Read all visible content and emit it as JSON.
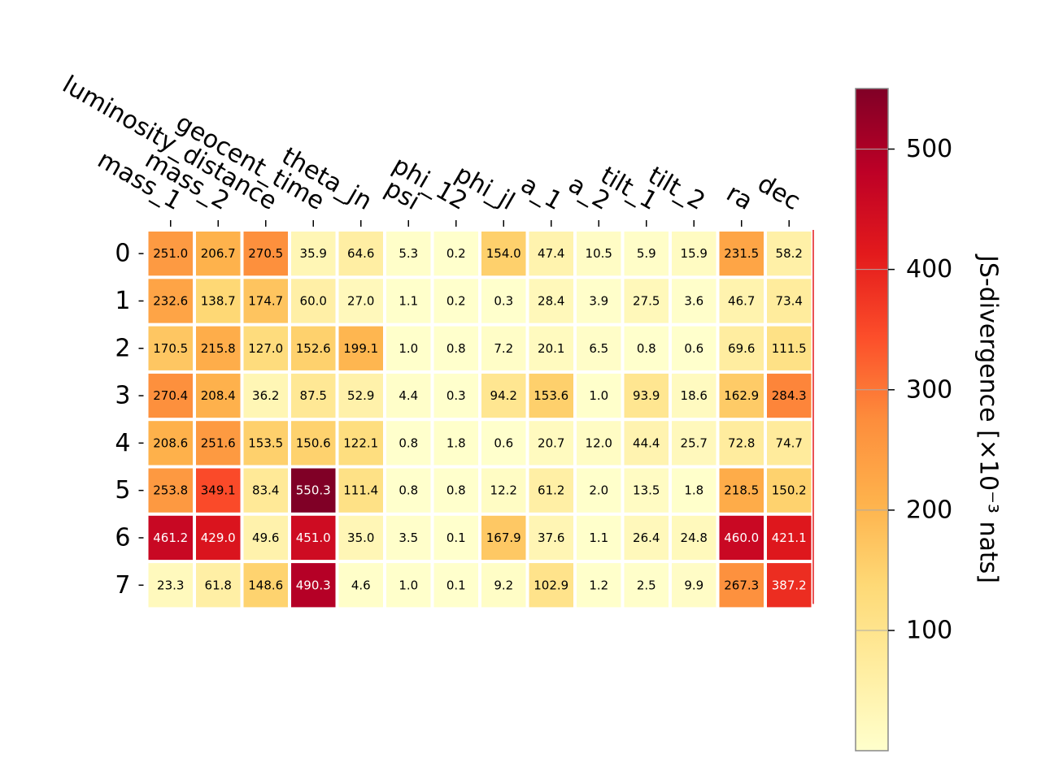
{
  "chart_data": {
    "type": "heatmap",
    "title": "",
    "xlabel": "",
    "ylabel": "",
    "x_categories": [
      "mass_1",
      "mass_2",
      "luminosity_distance",
      "geocent_time",
      "theta_jn",
      "psi",
      "phi_12",
      "phi_jl",
      "a_1",
      "a_2",
      "tilt_1",
      "tilt_2",
      "ra",
      "dec"
    ],
    "y_categories": [
      "0",
      "1",
      "2",
      "3",
      "4",
      "5",
      "6",
      "7"
    ],
    "values": [
      [
        251.0,
        206.7,
        270.5,
        35.9,
        64.6,
        5.3,
        0.2,
        154.0,
        47.4,
        10.5,
        5.9,
        15.9,
        231.5,
        58.2
      ],
      [
        232.6,
        138.7,
        174.7,
        60.0,
        27.0,
        1.1,
        0.2,
        0.3,
        28.4,
        3.9,
        27.5,
        3.6,
        46.7,
        73.4
      ],
      [
        170.5,
        215.8,
        127.0,
        152.6,
        199.1,
        1.0,
        0.8,
        7.2,
        20.1,
        6.5,
        0.8,
        0.6,
        69.6,
        111.5
      ],
      [
        270.4,
        208.4,
        36.2,
        87.5,
        52.9,
        4.4,
        0.3,
        94.2,
        153.6,
        1.0,
        93.9,
        18.6,
        162.9,
        284.3
      ],
      [
        208.6,
        251.6,
        153.5,
        150.6,
        122.1,
        0.8,
        1.8,
        0.6,
        20.7,
        12.0,
        44.4,
        25.7,
        72.8,
        74.7
      ],
      [
        253.8,
        349.1,
        83.4,
        550.3,
        111.4,
        0.8,
        0.8,
        12.2,
        61.2,
        2.0,
        13.5,
        1.8,
        218.5,
        150.2
      ],
      [
        461.2,
        429.0,
        49.6,
        451.0,
        35.0,
        3.5,
        0.1,
        167.9,
        37.6,
        1.1,
        26.4,
        24.8,
        460.0,
        421.1
      ],
      [
        23.3,
        61.8,
        148.6,
        490.3,
        4.6,
        1.0,
        0.1,
        9.2,
        102.9,
        1.2,
        2.5,
        9.9,
        267.3,
        387.2
      ]
    ],
    "colormap": "YlOrRd",
    "colorbar": {
      "label": "JS-divergence [×10⁻³ nats]",
      "range": [
        0.1,
        550.3
      ],
      "ticks": [
        100,
        200,
        300,
        400,
        500
      ]
    },
    "grid": false,
    "x_tick_position": "top"
  }
}
